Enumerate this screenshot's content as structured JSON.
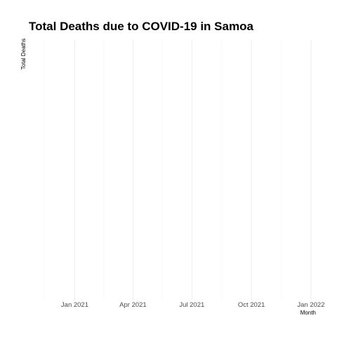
{
  "chart_data": {
    "type": "line",
    "title": "Total Deaths due to COVID-19 in Samoa",
    "xlabel": "Month",
    "ylabel": "Total Deaths",
    "x": [],
    "y": [],
    "xlim": [
      "2020-10-22",
      "2022-01-26"
    ],
    "x_ticks": [
      {
        "date": "2021-01-01",
        "label": "Jan 2021"
      },
      {
        "date": "2021-04-01",
        "label": "Apr 2021"
      },
      {
        "date": "2021-07-01",
        "label": "Jul 2021"
      },
      {
        "date": "2021-10-01",
        "label": "Oct 2021"
      },
      {
        "date": "2022-01-01",
        "label": "Jan 2022"
      }
    ],
    "x_minor_ticks": [
      "2020-11-15",
      "2021-02-15",
      "2021-05-16",
      "2021-08-16",
      "2021-11-16"
    ],
    "grid": true,
    "legend": "none"
  },
  "colors": {
    "grid_major": "#ebebeb",
    "grid_minor": "#f3f3f3",
    "tick_text": "#4d4d4d",
    "title_text": "#000000"
  }
}
